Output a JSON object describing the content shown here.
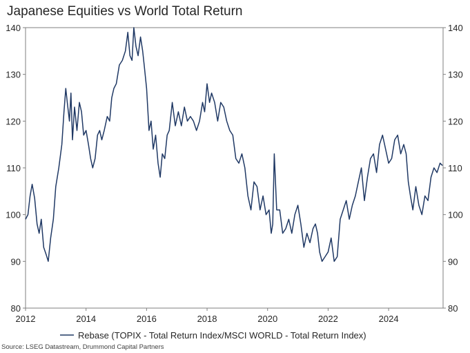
{
  "chart_data": {
    "type": "line",
    "title": "Japanese Equities vs World Total Return",
    "source": "Source: LSEG Datastream, Drummond Capital Partners",
    "xlabel": "",
    "ylabel": "",
    "xlim": [
      2012,
      2025.8
    ],
    "ylim": [
      80,
      140
    ],
    "x_ticks": [
      "2012",
      "2014",
      "2016",
      "2018",
      "2020",
      "2022",
      "2024"
    ],
    "x_tick_values": [
      2012,
      2014,
      2016,
      2018,
      2020,
      2022,
      2024
    ],
    "y_ticks_left": [
      "140",
      "130",
      "120",
      "110",
      "100",
      "90",
      "80"
    ],
    "y_ticks_right": [
      "140",
      "130",
      "120",
      "110",
      "100",
      "90",
      "80"
    ],
    "y_tick_values": [
      140,
      130,
      120,
      110,
      100,
      90,
      80
    ],
    "grid": false,
    "legend_position": "bottom",
    "colors": {
      "series": "#1f3864",
      "axis": "#7f7f7f"
    },
    "series": [
      {
        "name": "Rebase (TOPIX - Total Return Index/MSCI WORLD - Total Return Index)",
        "x": [
          2012.0,
          2012.08,
          2012.15,
          2012.22,
          2012.3,
          2012.38,
          2012.45,
          2012.52,
          2012.6,
          2012.68,
          2012.75,
          2012.83,
          2012.92,
          2013.0,
          2013.1,
          2013.2,
          2013.27,
          2013.33,
          2013.38,
          2013.45,
          2013.5,
          2013.55,
          2013.62,
          2013.7,
          2013.78,
          2013.85,
          2013.92,
          2014.0,
          2014.08,
          2014.15,
          2014.22,
          2014.3,
          2014.38,
          2014.45,
          2014.52,
          2014.6,
          2014.7,
          2014.78,
          2014.85,
          2014.92,
          2015.0,
          2015.1,
          2015.2,
          2015.3,
          2015.38,
          2015.45,
          2015.52,
          2015.58,
          2015.65,
          2015.72,
          2015.8,
          2015.87,
          2015.92,
          2016.0,
          2016.08,
          2016.15,
          2016.22,
          2016.3,
          2016.38,
          2016.45,
          2016.52,
          2016.6,
          2016.68,
          2016.75,
          2016.85,
          2016.95,
          2017.05,
          2017.15,
          2017.25,
          2017.35,
          2017.45,
          2017.55,
          2017.65,
          2017.75,
          2017.85,
          2017.92,
          2018.0,
          2018.08,
          2018.15,
          2018.25,
          2018.35,
          2018.45,
          2018.55,
          2018.65,
          2018.75,
          2018.85,
          2018.95,
          2019.05,
          2019.15,
          2019.25,
          2019.35,
          2019.45,
          2019.55,
          2019.65,
          2019.75,
          2019.85,
          2019.95,
          2020.05,
          2020.12,
          2020.17,
          2020.22,
          2020.3,
          2020.4,
          2020.5,
          2020.6,
          2020.7,
          2020.8,
          2020.9,
          2021.0,
          2021.1,
          2021.2,
          2021.3,
          2021.4,
          2021.5,
          2021.58,
          2021.65,
          2021.72,
          2021.8,
          2021.9,
          2022.0,
          2022.1,
          2022.2,
          2022.3,
          2022.4,
          2022.5,
          2022.6,
          2022.7,
          2022.8,
          2022.9,
          2023.0,
          2023.1,
          2023.2,
          2023.3,
          2023.4,
          2023.5,
          2023.6,
          2023.7,
          2023.8,
          2023.9,
          2024.0,
          2024.1,
          2024.2,
          2024.3,
          2024.4,
          2024.5,
          2024.58,
          2024.65,
          2024.72,
          2024.8,
          2024.9,
          2025.0,
          2025.1,
          2025.2,
          2025.3,
          2025.4,
          2025.5,
          2025.6,
          2025.7,
          2025.78
        ],
        "values": [
          99.0,
          100.0,
          104.0,
          106.5,
          103.5,
          98.0,
          96.0,
          99.0,
          93.0,
          91.5,
          90.0,
          95.0,
          99.0,
          106.0,
          110.0,
          115.0,
          122.0,
          127.0,
          124.0,
          120.0,
          126.0,
          116.0,
          123.0,
          118.0,
          124.0,
          122.0,
          117.0,
          118.0,
          115.0,
          112.0,
          110.0,
          112.0,
          117.0,
          118.0,
          116.0,
          118.0,
          121.0,
          120.0,
          125.0,
          127.0,
          128.0,
          132.0,
          133.0,
          135.0,
          139.0,
          134.0,
          133.0,
          140.0,
          136.0,
          134.0,
          138.0,
          135.0,
          132.0,
          127.0,
          118.0,
          120.0,
          114.0,
          117.0,
          111.0,
          108.0,
          113.0,
          112.0,
          117.0,
          118.0,
          124.0,
          119.0,
          122.0,
          119.0,
          123.0,
          120.0,
          121.0,
          120.0,
          118.0,
          120.0,
          124.0,
          122.0,
          128.0,
          124.0,
          126.0,
          124.0,
          120.0,
          124.0,
          123.0,
          120.0,
          118.0,
          117.0,
          112.0,
          111.0,
          113.0,
          110.0,
          104.0,
          101.0,
          107.0,
          106.0,
          101.0,
          104.0,
          100.0,
          101.0,
          96.0,
          98.0,
          113.0,
          101.0,
          101.0,
          96.0,
          97.0,
          99.0,
          96.0,
          100.0,
          102.0,
          98.0,
          93.0,
          96.0,
          94.0,
          97.0,
          98.0,
          96.0,
          92.0,
          90.0,
          91.0,
          92.0,
          95.0,
          90.0,
          91.0,
          99.0,
          101.0,
          103.0,
          99.0,
          102.0,
          104.0,
          107.0,
          110.0,
          103.0,
          108.0,
          112.0,
          113.0,
          109.0,
          115.0,
          117.0,
          114.0,
          111.0,
          112.0,
          116.0,
          117.0,
          113.0,
          115.0,
          113.0,
          107.0,
          104.0,
          101.0,
          106.0,
          102.0,
          100.0,
          104.0,
          103.0,
          108.0,
          110.0,
          109.0,
          111.0,
          110.5
        ]
      }
    ]
  }
}
